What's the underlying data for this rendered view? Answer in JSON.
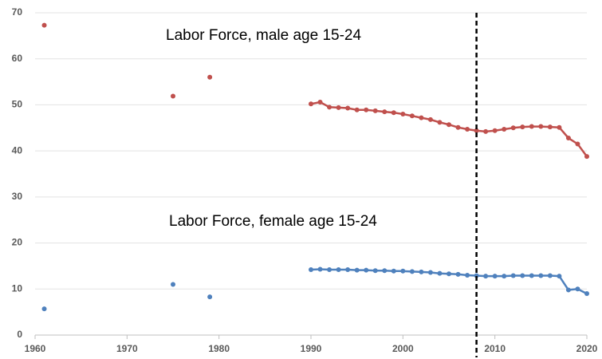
{
  "chart_data": {
    "type": "line",
    "annotations": [
      "Labor Force, male age 15-24",
      "Labor Force, female age 15-24"
    ],
    "x": [
      1961,
      1975,
      1979,
      1990,
      1991,
      1992,
      1993,
      1994,
      1995,
      1996,
      1997,
      1998,
      1999,
      2000,
      2001,
      2002,
      2003,
      2004,
      2005,
      2006,
      2007,
      2008,
      2009,
      2010,
      2011,
      2012,
      2013,
      2014,
      2015,
      2016,
      2017,
      2018,
      2019,
      2020
    ],
    "series": [
      {
        "name": "Labor Force, male age 15-24",
        "color": "#c0504d",
        "values": [
          67.3,
          51.9,
          56.0,
          50.2,
          50.6,
          49.5,
          49.4,
          49.3,
          48.9,
          48.9,
          48.7,
          48.5,
          48.3,
          48.0,
          47.6,
          47.2,
          46.8,
          46.2,
          45.7,
          45.1,
          44.7,
          44.4,
          44.2,
          44.4,
          44.7,
          45.0,
          45.2,
          45.3,
          45.3,
          45.2,
          45.1,
          42.8,
          41.5,
          38.8
        ]
      },
      {
        "name": "Labor Force, female age 15-24",
        "color": "#4f81bd",
        "values": [
          5.7,
          11.0,
          8.3,
          14.2,
          14.3,
          14.2,
          14.2,
          14.2,
          14.1,
          14.1,
          14.0,
          14.0,
          13.9,
          13.9,
          13.8,
          13.7,
          13.6,
          13.4,
          13.3,
          13.2,
          13.0,
          12.9,
          12.8,
          12.8,
          12.8,
          12.9,
          12.9,
          12.9,
          12.9,
          12.9,
          12.8,
          9.8,
          10.0,
          9.0
        ]
      }
    ],
    "vline": 2008,
    "xlim": [
      1960,
      2020
    ],
    "xticks": [
      1960,
      1970,
      1980,
      1990,
      2000,
      2010,
      2020
    ],
    "ylim": [
      0,
      70
    ],
    "yticks": [
      0,
      10,
      20,
      30,
      40,
      50,
      60,
      70
    ],
    "grid": true
  }
}
